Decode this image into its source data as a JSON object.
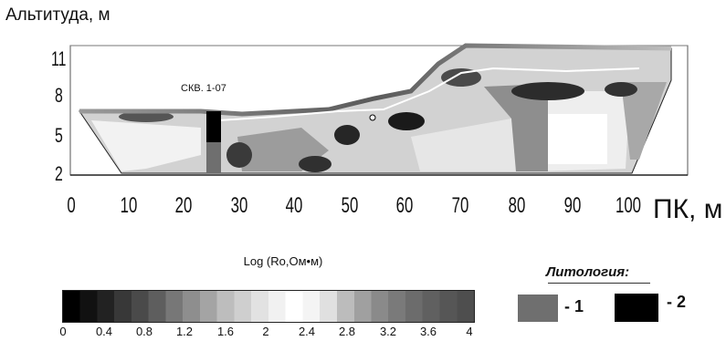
{
  "section": {
    "y_axis_label": "Альтитуда, м",
    "y_ticks": [
      "11",
      "8",
      "5",
      "2"
    ],
    "x_ticks": [
      "0",
      "10",
      "20",
      "30",
      "40",
      "50",
      "60",
      "70",
      "80",
      "90",
      "100"
    ],
    "x_axis_label": "ПК, м",
    "borehole_label": "СКВ. 1-07"
  },
  "colorbar": {
    "title": "Log (Ro,Ом•м)",
    "ticks": [
      "0",
      "0.4",
      "0.8",
      "1.2",
      "1.6",
      "2",
      "2.4",
      "2.8",
      "3.2",
      "3.6",
      "4"
    ],
    "range": [
      0,
      4
    ]
  },
  "legend": {
    "title": "Литология:",
    "items": [
      {
        "label": "- 1",
        "color": "#6f6f6f"
      },
      {
        "label": "- 2",
        "color": "#000000"
      }
    ]
  }
}
